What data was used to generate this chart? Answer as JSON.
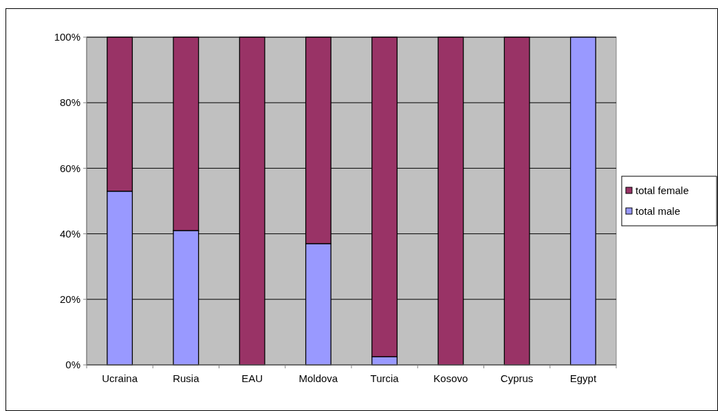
{
  "chart_data": {
    "type": "bar",
    "stacked": true,
    "categories": [
      "Ucraina",
      "Rusia",
      "EAU",
      "Moldova",
      "Turcia",
      "Kosovo",
      "Cyprus",
      "Egypt"
    ],
    "series": [
      {
        "name": "total male",
        "color": "#9999ff",
        "values": [
          53,
          41,
          0,
          37,
          2.5,
          0,
          0,
          100
        ]
      },
      {
        "name": "total female",
        "color": "#993366",
        "values": [
          47,
          59,
          100,
          63,
          97.5,
          100,
          100,
          0
        ]
      }
    ],
    "ylim": [
      0,
      100
    ],
    "yticks": [
      {
        "value": 0,
        "label": "0%"
      },
      {
        "value": 20,
        "label": "20%"
      },
      {
        "value": 40,
        "label": "40%"
      },
      {
        "value": 60,
        "label": "60%"
      },
      {
        "value": 80,
        "label": "80%"
      },
      {
        "value": 100,
        "label": "100%"
      }
    ],
    "grid": "y",
    "legend": "right"
  }
}
